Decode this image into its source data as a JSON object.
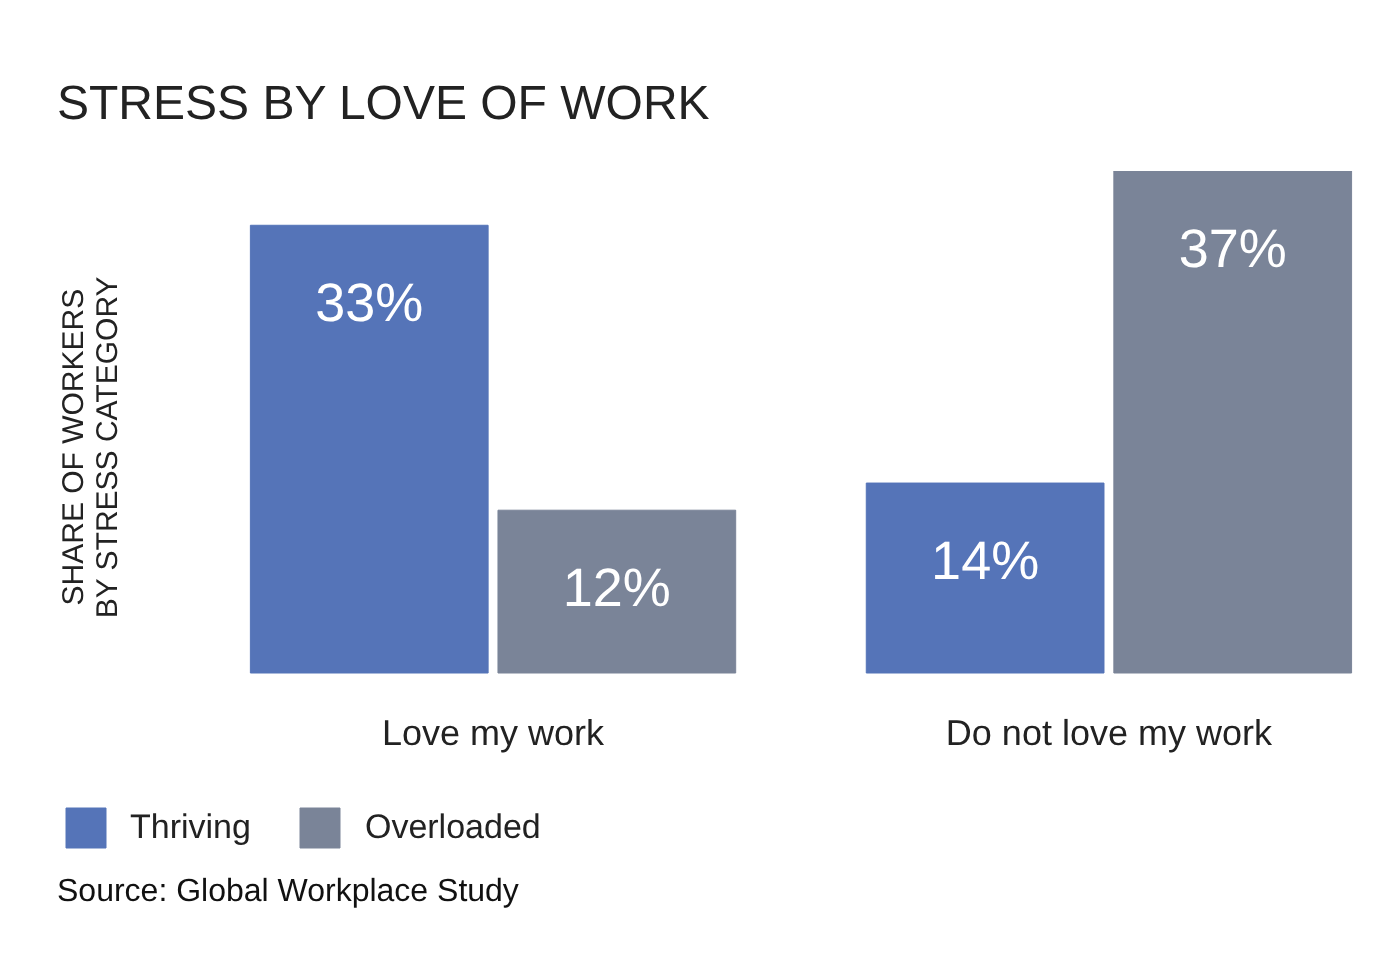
{
  "chart_data": {
    "type": "bar",
    "title": "STRESS BY LOVE OF WORK",
    "ylabel": "SHARE OF WORKERS\nBY STRESS CATEGORY",
    "categories": [
      "Love my work",
      "Do not love my work"
    ],
    "series": [
      {
        "name": "Thriving",
        "color": "#5574b8",
        "values": [
          33,
          14
        ],
        "value_labels": [
          "33%",
          "14%"
        ]
      },
      {
        "name": "Overloaded",
        "color": "#7a8498",
        "values": [
          12,
          37
        ],
        "value_labels": [
          "12%",
          "37%"
        ]
      }
    ],
    "legend": "bottom left",
    "tick_labels": "x",
    "annotations": [
      "Source: Global Workplace Study"
    ]
  }
}
